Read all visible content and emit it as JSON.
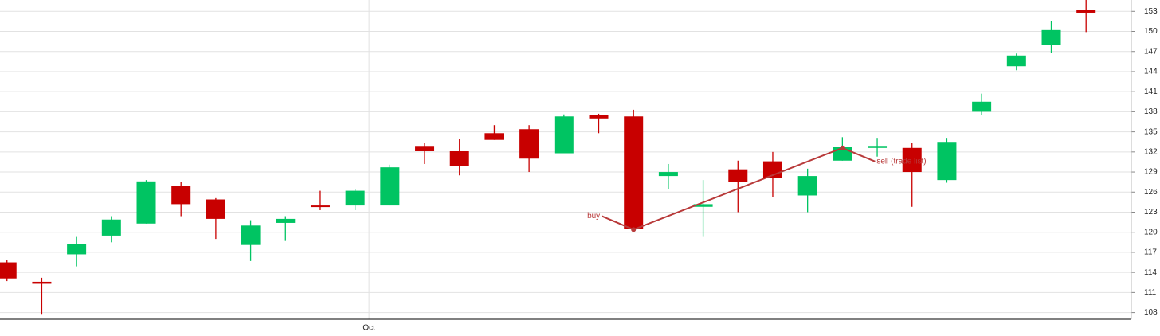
{
  "chart_data": {
    "type": "candlestick",
    "x": [
      0,
      1,
      2,
      3,
      4,
      5,
      6,
      7,
      8,
      9,
      10,
      11,
      12,
      13,
      14,
      15,
      16,
      17,
      18,
      19,
      20,
      21,
      22,
      23,
      24,
      25,
      26,
      27,
      28,
      29,
      30,
      31
    ],
    "open": [
      115.5,
      112.6,
      116.7,
      119.5,
      121.3,
      126.9,
      124.9,
      118.1,
      121.4,
      124.0,
      124.0,
      124.0,
      132.9,
      132.1,
      134.8,
      135.4,
      131.8,
      137.5,
      137.3,
      128.4,
      123.8,
      129.4,
      130.6,
      125.5,
      130.7,
      132.6,
      132.6,
      127.8,
      138.0,
      144.8,
      148.0,
      153.2
    ],
    "high": [
      115.8,
      113.2,
      119.3,
      122.4,
      127.8,
      127.5,
      125.1,
      121.8,
      122.4,
      126.2,
      126.4,
      130.1,
      133.3,
      133.9,
      136.0,
      136.0,
      137.6,
      137.7,
      138.3,
      130.2,
      127.8,
      130.7,
      132.0,
      129.5,
      134.2,
      134.1,
      133.3,
      134.1,
      140.7,
      146.7,
      151.6,
      154.7
    ],
    "low": [
      112.7,
      107.8,
      114.9,
      118.5,
      121.3,
      122.4,
      119.0,
      115.7,
      118.7,
      123.3,
      123.3,
      124.0,
      130.2,
      128.5,
      133.8,
      129.0,
      131.8,
      134.8,
      120.2,
      126.4,
      119.3,
      123.0,
      125.2,
      123.0,
      130.7,
      131.3,
      123.8,
      127.4,
      137.5,
      144.2,
      146.8,
      149.9
    ],
    "close": [
      113.1,
      112.3,
      118.2,
      121.9,
      127.6,
      124.2,
      122.0,
      121.0,
      122.0,
      123.8,
      126.2,
      129.7,
      132.1,
      129.9,
      133.8,
      131.0,
      137.3,
      137.0,
      120.5,
      129.0,
      124.2,
      127.5,
      128.1,
      128.4,
      132.7,
      132.9,
      129.0,
      133.5,
      139.5,
      146.4,
      150.2,
      152.8
    ],
    "up_color": "#00c462",
    "down_color": "#c80000",
    "trades": [
      {
        "label": "buy",
        "x": 18,
        "price": 120.4
      },
      {
        "label": "sell (trade list)",
        "x": 24,
        "price": 132.6
      }
    ],
    "trade_color": "#b83a3a",
    "xlim": [
      -0.2,
      32.3
    ],
    "xticks": [
      {
        "value": 10.4,
        "label": "Oct"
      }
    ],
    "ylim": [
      107.0,
      154.7
    ],
    "yticks": [
      108,
      111,
      114,
      117,
      120,
      123,
      126,
      129,
      132,
      135,
      138,
      141,
      144,
      147,
      150,
      153
    ],
    "grid": true
  }
}
